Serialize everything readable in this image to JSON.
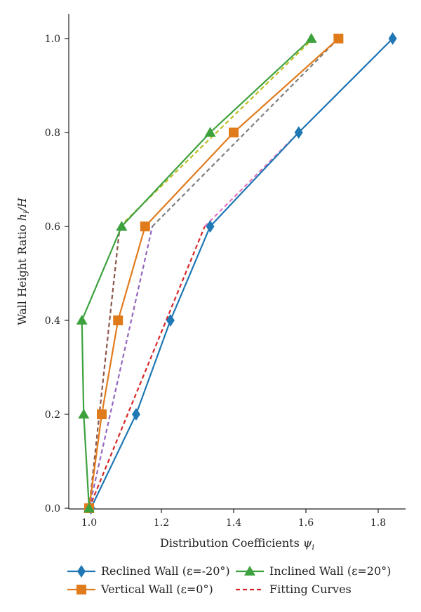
{
  "chart_data": {
    "type": "line",
    "xlabel": "Distribution Coefficients",
    "xlabel_symbol": "ψ",
    "xlabel_sub": "i",
    "ylabel": "Wall Height Ratio",
    "ylabel_symbol": "h",
    "ylabel_sub": "i",
    "ylabel_suffix": "/H",
    "xlim": [
      0.94,
      1.88
    ],
    "ylim": [
      0.0,
      1.05
    ],
    "xticks": [
      1.0,
      1.2,
      1.4,
      1.6,
      1.8
    ],
    "xtick_labels": [
      "1.0",
      "1.2",
      "1.4",
      "1.6",
      "1.8"
    ],
    "yticks": [
      0.0,
      0.2,
      0.4,
      0.6,
      0.8,
      1.0
    ],
    "ytick_labels": [
      "0.0",
      "0.2",
      "0.4",
      "0.6",
      "0.8",
      "1.0"
    ],
    "grid": false,
    "legend_position": "bottom",
    "series": [
      {
        "name": "Reclined Wall (ε=-20°)",
        "color": "#1f77b4",
        "marker": "diamond",
        "line": "solid",
        "x": [
          1.005,
          1.13,
          1.225,
          1.335,
          1.58,
          1.84
        ],
        "y": [
          0.0,
          0.2,
          0.4,
          0.6,
          0.8,
          1.0
        ]
      },
      {
        "name": "Vertical Wall (ε=0°)",
        "color": "#e07b1c",
        "marker": "square",
        "line": "solid",
        "x": [
          1.0,
          1.035,
          1.08,
          1.155,
          1.4,
          1.69
        ],
        "y": [
          0.0,
          0.2,
          0.4,
          0.6,
          0.8,
          1.0
        ]
      },
      {
        "name": "Inclined Wall (ε=20°)",
        "color": "#3da13d",
        "marker": "triangle",
        "line": "solid",
        "x": [
          1.0,
          0.985,
          0.98,
          1.09,
          1.335,
          1.615
        ],
        "y": [
          0.0,
          0.2,
          0.4,
          0.6,
          0.8,
          1.0
        ]
      }
    ],
    "fitting_curves": {
      "name": "Fitting Curves",
      "legend_color": "#d62728",
      "curves": [
        {
          "color": "#d62728",
          "x": [
            1.0,
            1.32
          ],
          "y": [
            0.0,
            0.6
          ]
        },
        {
          "color": "#e377c2",
          "x": [
            1.32,
            1.84
          ],
          "y": [
            0.6,
            1.0
          ]
        },
        {
          "color": "#9467bd",
          "x": [
            1.0,
            1.175
          ],
          "y": [
            0.0,
            0.6
          ]
        },
        {
          "color": "#7f7f7f",
          "x": [
            1.175,
            1.69
          ],
          "y": [
            0.6,
            1.0
          ]
        },
        {
          "color": "#8c564b",
          "x": [
            1.0,
            1.085
          ],
          "y": [
            0.0,
            0.6
          ]
        },
        {
          "color": "#bcbd22",
          "x": [
            1.085,
            1.62
          ],
          "y": [
            0.6,
            1.0
          ]
        }
      ]
    }
  }
}
